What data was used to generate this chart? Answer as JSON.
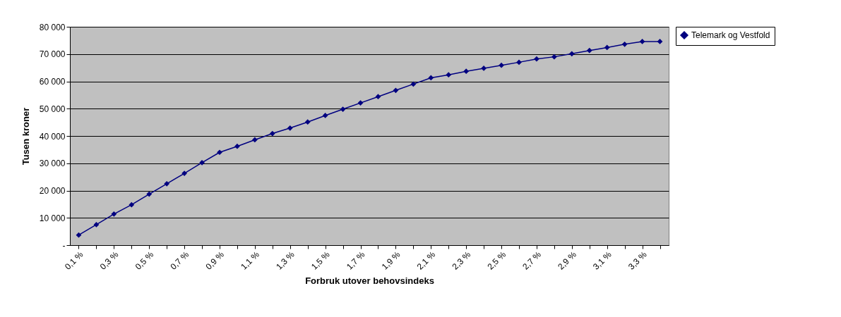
{
  "chart_data": {
    "type": "line",
    "xlabel": "Forbruk utover behovsindeks",
    "ylabel": "Tusen kroner",
    "categories": [
      "0,1 %",
      null,
      "0,3 %",
      null,
      "0,5 %",
      null,
      "0,7 %",
      null,
      "0,9 %",
      null,
      "1,1 %",
      null,
      "1,3 %",
      null,
      "1,5 %",
      null,
      "1,7 %",
      null,
      "1,9 %",
      null,
      "2,1 %",
      null,
      "2,3 %",
      null,
      "2,5 %",
      null,
      "2,7 %",
      null,
      "2,9 %",
      null,
      "3,1 %",
      null,
      "3,3 %",
      null
    ],
    "series": [
      {
        "name": "Telemark og Vestfold",
        "color": "#000080",
        "values": [
          3700,
          7500,
          11400,
          14800,
          18700,
          22500,
          26300,
          30200,
          34000,
          36200,
          38600,
          40900,
          42900,
          45100,
          47500,
          49800,
          52100,
          54400,
          56700,
          59000,
          61300,
          62400,
          63700,
          64800,
          65900,
          67000,
          68200,
          69000,
          70100,
          71300,
          72400,
          73600,
          74600,
          74600
        ]
      }
    ],
    "ylim": [
      0,
      80000
    ],
    "yticks": [
      {
        "value": 0,
        "label": "-"
      },
      {
        "value": 10000,
        "label": "10 000"
      },
      {
        "value": 20000,
        "label": "20 000"
      },
      {
        "value": 30000,
        "label": "30 000"
      },
      {
        "value": 40000,
        "label": "40 000"
      },
      {
        "value": 50000,
        "label": "50 000"
      },
      {
        "value": 60000,
        "label": "60 000"
      },
      {
        "value": 70000,
        "label": "70 000"
      },
      {
        "value": 80000,
        "label": "80 000"
      }
    ],
    "grid": "y",
    "legend": "right",
    "marker": "diamond",
    "line_style": "solid"
  }
}
